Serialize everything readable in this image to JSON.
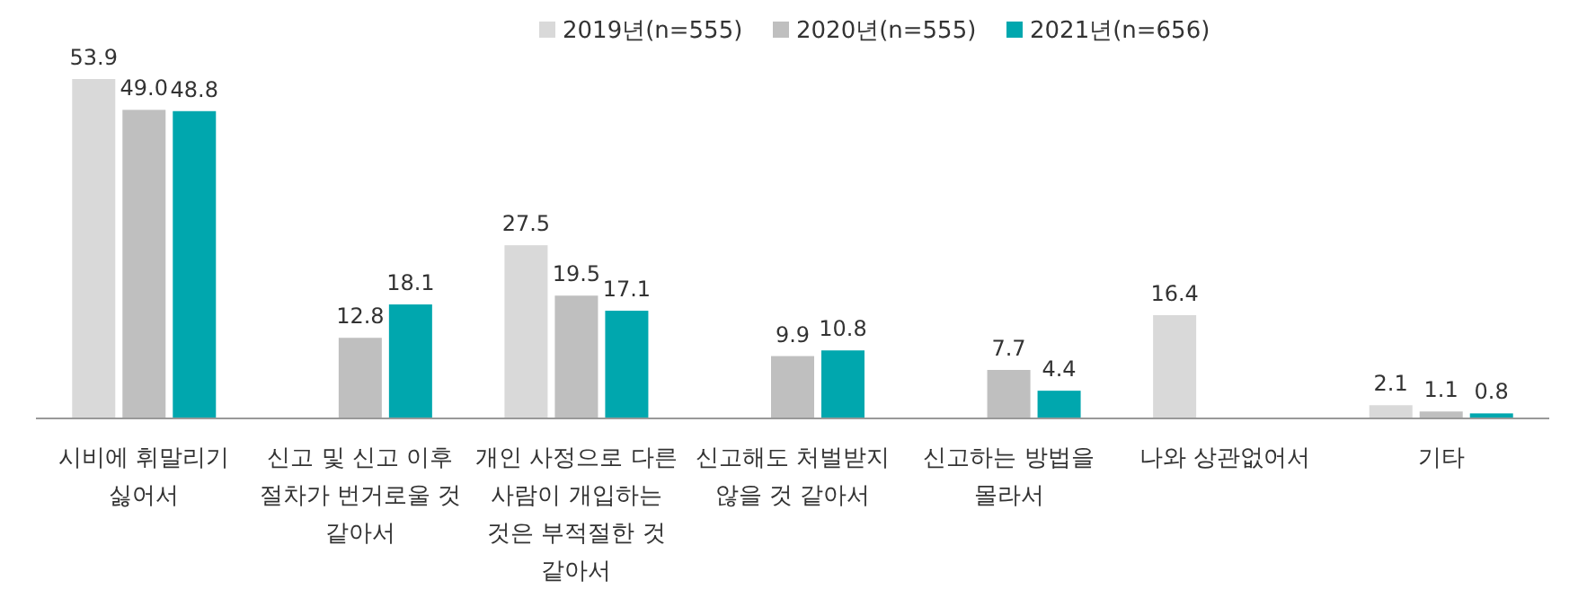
{
  "chart_data": {
    "type": "bar",
    "categories": [
      "시비에 휘말리기 싫어서",
      "신고 및 신고 이후 절차가 번거로울 것 같아서",
      "개인 사정으로 다른 사람이 개입하는 것은 부적절한 것 같아서",
      "신고해도 처벌받지 않을 것 같아서",
      "신고하는 방법을 몰라서",
      "나와 상관없어서",
      "기타"
    ],
    "series": [
      {
        "name": "2019년(n=555)",
        "color": "#d9d9d9",
        "values": [
          53.9,
          null,
          27.5,
          null,
          null,
          16.4,
          2.1
        ],
        "value_labels": [
          "53.9",
          null,
          "27.5",
          null,
          null,
          "16.4",
          "2.1"
        ]
      },
      {
        "name": "2020년(n=555)",
        "color": "#bfbfbf",
        "values": [
          49.0,
          12.8,
          19.5,
          9.9,
          7.7,
          null,
          1.1
        ],
        "value_labels": [
          "49.0",
          "12.8",
          "19.5",
          "9.9",
          "7.7",
          null,
          "1.1"
        ]
      },
      {
        "name": "2021년(n=656)",
        "color": "#00a7ae",
        "values": [
          48.8,
          18.1,
          17.1,
          10.8,
          4.4,
          null,
          0.8
        ],
        "value_labels": [
          "48.8",
          "18.1",
          "17.1",
          "10.8",
          "4.4",
          null,
          "0.8"
        ]
      }
    ],
    "legend": "top",
    "relative": false
  }
}
